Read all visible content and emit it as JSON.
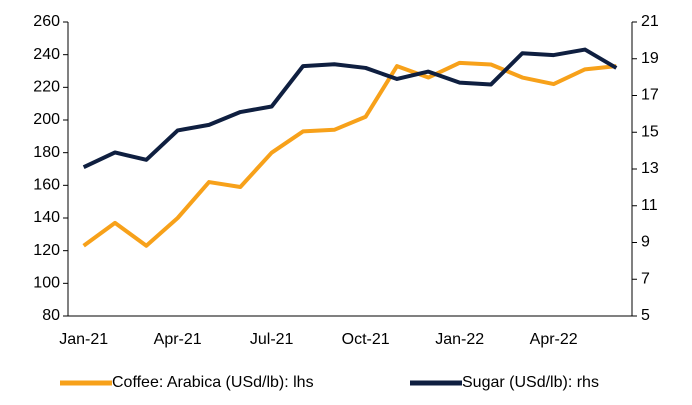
{
  "chart_data": {
    "type": "line",
    "categories": [
      "Jan-21",
      null,
      null,
      "Apr-21",
      null,
      null,
      "Jul-21",
      null,
      null,
      "Oct-21",
      null,
      null,
      "Jan-22",
      null,
      null,
      "Apr-22",
      null,
      null
    ],
    "series": [
      {
        "name": "Coffee: Arabica (USd/lb): lhs",
        "color": "#f7a11a",
        "axis": "y",
        "values": [
          123,
          137,
          123,
          140,
          162,
          159,
          180,
          193,
          194,
          202,
          233,
          226,
          235,
          234,
          226,
          222,
          231,
          233
        ]
      },
      {
        "name": "Sugar (USd/lb): rhs",
        "color": "#0f1f40",
        "axis": "y2",
        "values": [
          13.1,
          13.9,
          13.5,
          15.1,
          15.4,
          16.1,
          16.4,
          18.6,
          18.7,
          18.5,
          17.9,
          18.3,
          17.7,
          17.6,
          19.3,
          19.2,
          19.5,
          18.5
        ]
      }
    ],
    "ylim": [
      80,
      260
    ],
    "yticks": [
      80,
      100,
      120,
      140,
      160,
      180,
      200,
      220,
      240,
      260
    ],
    "y2lim": [
      5,
      21
    ],
    "y2ticks": [
      5,
      7,
      9,
      11,
      13,
      15,
      17,
      19,
      21
    ],
    "legend": "bottom"
  }
}
